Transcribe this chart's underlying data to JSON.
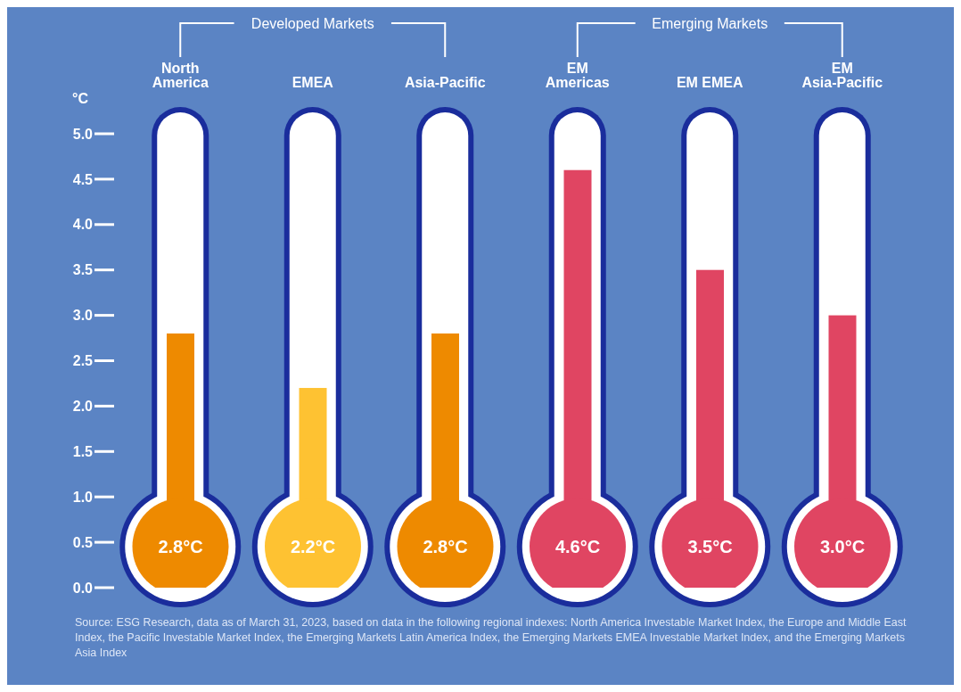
{
  "chart_data": {
    "type": "bar",
    "categories": [
      "North America",
      "EMEA",
      "Asia-Pacific",
      "EM Americas",
      "EM EMEA",
      "EM Asia-Pacific"
    ],
    "values": [
      2.8,
      2.2,
      2.8,
      4.6,
      3.5,
      3.0
    ],
    "colors": [
      "#ee8a00",
      "#fec232",
      "#ee8a00",
      "#e04562",
      "#e04562",
      "#e04562"
    ],
    "value_labels": [
      "2.8°C",
      "2.2°C",
      "2.8°C",
      "4.6°C",
      "3.5°C",
      "3.0°C"
    ],
    "ylabel": "°C",
    "ylim": [
      0,
      5
    ],
    "yticks": [
      {
        "value": 0,
        "label": "0.0"
      },
      0.5,
      {
        "value": 1,
        "label": "1.0"
      },
      1.5,
      {
        "value": 2,
        "label": "2.0"
      },
      2.5,
      {
        "value": 3,
        "label": "3.0"
      },
      3.5,
      {
        "value": 4,
        "label": "4.0"
      },
      4.5,
      {
        "value": 5,
        "label": "5.0"
      }
    ],
    "grid": false,
    "legend": false,
    "annotations": [
      "Developed Markets",
      "Emerging Markets",
      "Source: ESG Research, data as of March 31, 2023, based on data in the following regional indexes: North America Investable Market Index, the Europe and Middle East Index, the Pacific Investable Market Index, the Emerging Markets Latin America Index, the Emerging Markets EMEA Investable Market Index, and the Emerging Markets Asia Index"
    ]
  }
}
